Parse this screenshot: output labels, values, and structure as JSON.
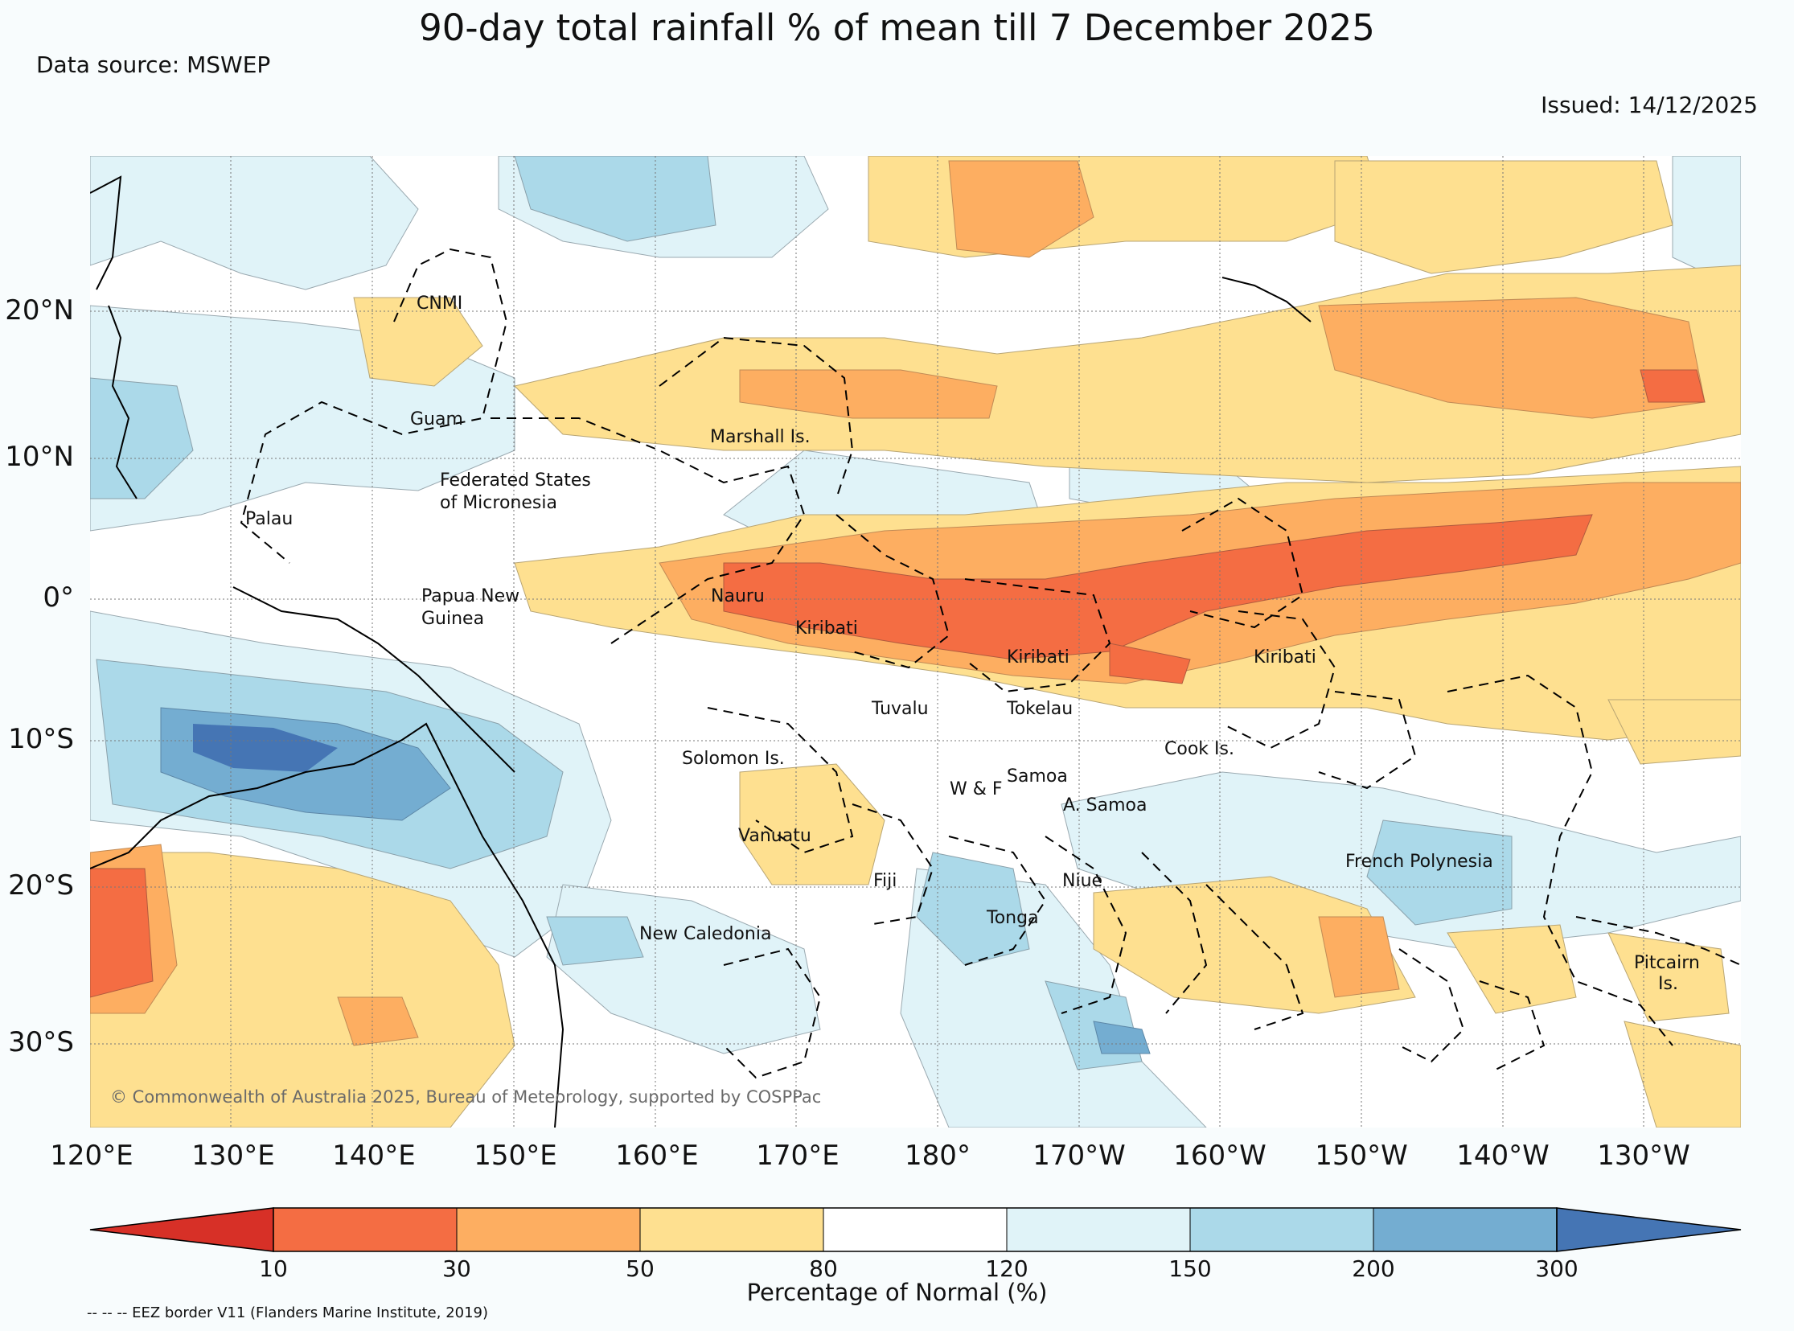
{
  "title": "90-day total rainfall % of mean till 7 December 2025",
  "data_source": "Data source: MSWEP",
  "issued": "Issued: 14/12/2025",
  "copyright": "© Commonwealth of Australia 2025, Bureau of Meteorology, supported by COSPPac",
  "eez_note": "-- -- -- EEZ border V11 (Flanders Marine Institute, 2019)",
  "axes": {
    "lat_labels": [
      "20°N",
      "10°N",
      "0°",
      "10°S",
      "20°S",
      "30°S"
    ],
    "lon_labels": [
      "120°E",
      "130°E",
      "140°E",
      "150°E",
      "160°E",
      "170°E",
      "180°",
      "170°W",
      "160°W",
      "150°W",
      "140°W",
      "130°W"
    ]
  },
  "legend": {
    "label": "Percentage of Normal (%)",
    "ticks": [
      "10",
      "30",
      "50",
      "80",
      "120",
      "150",
      "200",
      "300"
    ],
    "colors": [
      "#d73027",
      "#f46d43",
      "#fdae61",
      "#fee090",
      "#ffffff",
      "#e0f3f8",
      "#abd9e9",
      "#74add1",
      "#4575b4"
    ]
  },
  "places": {
    "cnmi": "CNMI",
    "guam": "Guam",
    "marshall": "Marshall Is.",
    "fsm1": "Federated States",
    "fsm2": "of Micronesia",
    "palau": "Palau",
    "png1": "Papua New",
    "png2": "Guinea",
    "nauru": "Nauru",
    "kiribati1": "Kiribati",
    "kiribati2": "Kiribati",
    "kiribati3": "Kiribati",
    "tuvalu": "Tuvalu",
    "tokelau": "Tokelau",
    "solomon": "Solomon Is.",
    "cook": "Cook Is.",
    "samoa": "Samoa",
    "wf": "W & F",
    "asamoa": "A. Samoa",
    "vanuatu": "Vanuatu",
    "fiji": "Fiji",
    "niue": "Niue",
    "tonga": "Tonga",
    "frpoly": "French Polynesia",
    "newcal": "New Caledonia",
    "pitcairn1": "Pitcairn",
    "pitcairn2": "Is."
  }
}
